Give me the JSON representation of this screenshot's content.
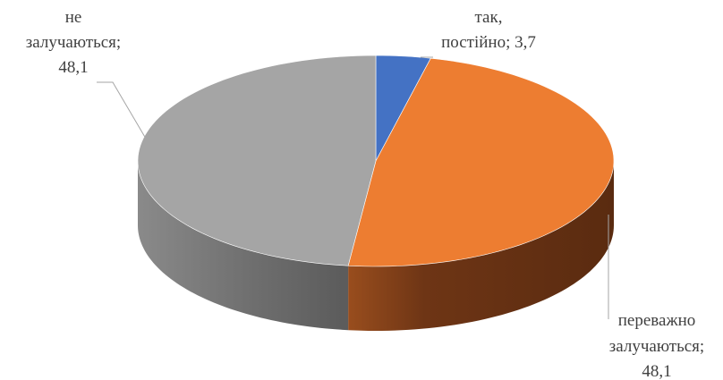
{
  "chart_data": {
    "type": "pie",
    "style": "3d",
    "title": "",
    "series": [
      {
        "values": [
          3.7,
          48.1,
          48.1
        ],
        "categories": [
          "так, постійно",
          "переважно залучаються",
          "не залучаються"
        ]
      }
    ],
    "slices": [
      {
        "label_lines": [
          "так,",
          "постійно; 3,7"
        ],
        "value": 3.7,
        "color": "#4472C4"
      },
      {
        "label_lines": [
          "переважно",
          "залучаються;",
          "48,1"
        ],
        "value": 48.1,
        "color": "#ED7D31"
      },
      {
        "label_lines": [
          "не",
          "залучаються;",
          "48,1"
        ],
        "value": 48.1,
        "color": "#A5A5A5"
      }
    ],
    "legend": "none",
    "data_labels": "outside-with-leader-lines",
    "leader_line_color": "#A6A6A6"
  }
}
